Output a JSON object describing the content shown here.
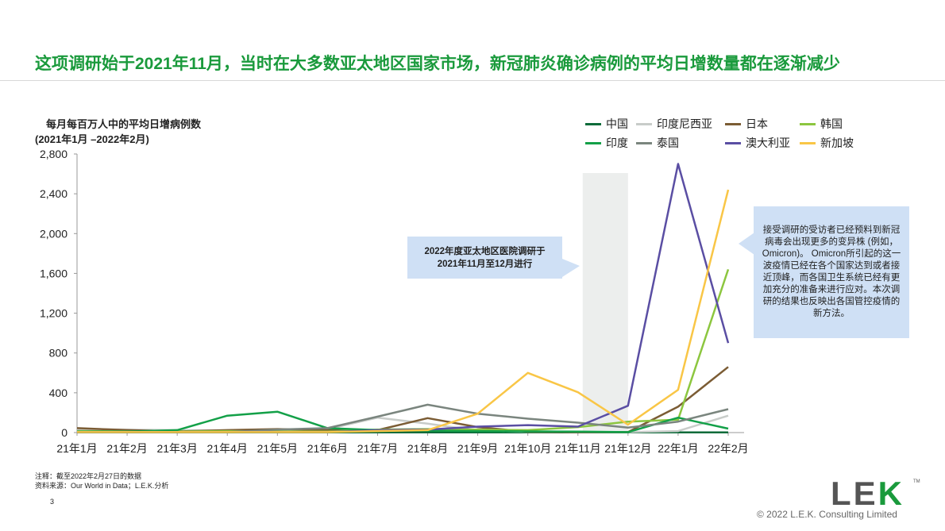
{
  "headline": "这项调研始于2021年11月，当时在大多数亚太地区国家市场，新冠肺炎确诊病例的平均日增数量都在逐渐减少",
  "chart_data": {
    "type": "line",
    "title_line1": "每月每百万人中的平均日增病例数",
    "title_line2": "(2021年1月 –2022年2月)",
    "categories": [
      "21年1月",
      "21年2月",
      "21年3月",
      "21年4月",
      "21年5月",
      "21年6月",
      "21年7月",
      "21年8月",
      "21年9月",
      "21年10月",
      "21年11月",
      "21年12月",
      "22年1月",
      "22年2月"
    ],
    "ylim": [
      0,
      2800
    ],
    "yticks": [
      "0",
      "400",
      "800",
      "1,200",
      "1,600",
      "2,000",
      "2,400",
      "2,800"
    ],
    "ytick_values": [
      0,
      400,
      800,
      1200,
      1600,
      2000,
      2400,
      2800
    ],
    "highlight_period": [
      "21年11月",
      "21年12月"
    ],
    "series": [
      {
        "name": "中国",
        "color": "#0d6b3a",
        "values": [
          2,
          2,
          2,
          2,
          2,
          2,
          2,
          2,
          2,
          2,
          2,
          2,
          2,
          2
        ]
      },
      {
        "name": "印度尼西亚",
        "color": "#c8ccc9",
        "values": [
          35,
          30,
          25,
          20,
          22,
          35,
          150,
          90,
          20,
          8,
          5,
          5,
          15,
          170
        ]
      },
      {
        "name": "日本",
        "color": "#7b5c34",
        "values": [
          45,
          25,
          12,
          25,
          35,
          25,
          25,
          145,
          55,
          8,
          5,
          5,
          260,
          660
        ]
      },
      {
        "name": "韩国",
        "color": "#8cc63f",
        "values": [
          15,
          12,
          10,
          15,
          12,
          10,
          30,
          35,
          30,
          25,
          55,
          110,
          130,
          1640
        ]
      },
      {
        "name": "印度",
        "color": "#13a048",
        "values": [
          10,
          10,
          25,
          170,
          210,
          45,
          25,
          20,
          15,
          12,
          10,
          5,
          150,
          40
        ]
      },
      {
        "name": "泰国",
        "color": "#7a857e",
        "values": [
          5,
          5,
          5,
          5,
          30,
          45,
          160,
          280,
          190,
          140,
          100,
          50,
          110,
          235
        ]
      },
      {
        "name": "澳大利亚",
        "color": "#5a4ea3",
        "values": [
          5,
          5,
          5,
          5,
          5,
          5,
          25,
          30,
          60,
          75,
          60,
          270,
          2700,
          900
        ]
      },
      {
        "name": "新加坡",
        "color": "#f9c646",
        "values": [
          5,
          5,
          5,
          5,
          5,
          5,
          15,
          25,
          190,
          600,
          405,
          80,
          430,
          2440
        ]
      }
    ]
  },
  "callout_survey": {
    "line1": "2022年度亚太地区医院调研于",
    "line2": "2021年11月至12月进行"
  },
  "callout_omicron": "接受调研的受访者已经预料到新冠病毒会出现更多的变异株 (例如，Omicron)。 Omicron所引起的这一波疫情已经在各个国家达到或者接近顶峰，而各国卫生系统已经有更加充分的准备来进行应对。本次调研的结果也反映出各国管控疫情的新方法。",
  "notes": {
    "note": "注释：截至2022年2月27日的数据",
    "source": "资料来源：Our World in Data；L.E.K.分析"
  },
  "page_number": "3",
  "logo": {
    "letters": "LE",
    "k": "K",
    "tm": "TM"
  },
  "copyright": "© 2022 L.E.K. Consulting Limited"
}
